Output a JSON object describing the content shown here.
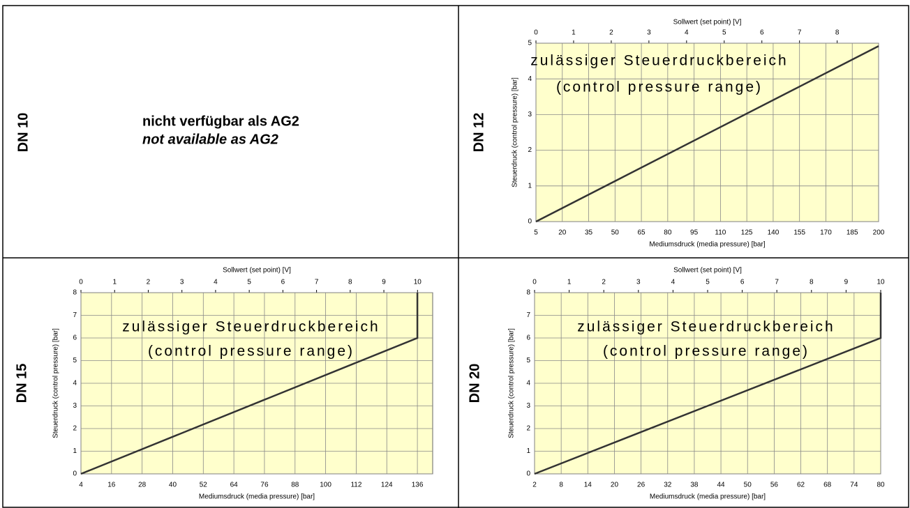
{
  "cells": [
    {
      "label": "DN 10",
      "lines": [
        "nicht verfügbar als AG2",
        "not available as AG2"
      ]
    }
  ],
  "chart_data": [
    {
      "type": "line",
      "panel_label": "DN 12",
      "title": "Sollwert (set point) [V]",
      "xlabel": "Mediumsdruck (media pressure) [bar]",
      "ylabel": "Steuerdruck (control pressure) [bar]",
      "annotations": [
        "zulässiger Steuerdruckbereich",
        "(control pressure range)"
      ],
      "x": [
        5,
        200
      ],
      "values": [
        0,
        4.92
      ],
      "color": "#333333",
      "xlim": [
        5,
        200
      ],
      "xticks": [
        5,
        20,
        35,
        50,
        65,
        80,
        95,
        110,
        125,
        140,
        155,
        170,
        185,
        200
      ],
      "x2lim": [
        0,
        9.1
      ],
      "x2ticks": [
        0,
        1,
        2,
        3,
        4,
        5,
        6,
        7,
        8
      ],
      "ylim": [
        0,
        5
      ],
      "yticks": [
        0,
        1,
        2,
        3,
        4,
        5
      ],
      "grid": true,
      "background": "#ffffcc"
    },
    {
      "type": "line",
      "panel_label": "DN 15",
      "title": "Sollwert (set point) [V]",
      "xlabel": "Mediumsdruck (media pressure) [bar]",
      "ylabel": "Steuerdruck (control pressure) [bar]",
      "annotations": [
        "zulässiger Steuerdruckbereich",
        "(control pressure range)"
      ],
      "x": [
        4,
        136,
        136
      ],
      "values": [
        0,
        6,
        8
      ],
      "color": "#333333",
      "xlim": [
        4,
        142
      ],
      "xticks": [
        4,
        16,
        28,
        40,
        52,
        64,
        76,
        88,
        100,
        112,
        124,
        136
      ],
      "x2lim": [
        0,
        10.45
      ],
      "x2ticks": [
        0,
        1,
        2,
        3,
        4,
        5,
        6,
        7,
        8,
        9,
        10
      ],
      "ylim": [
        0,
        8
      ],
      "yticks": [
        0,
        1,
        2,
        3,
        4,
        5,
        6,
        7,
        8
      ],
      "grid": true,
      "background": "#ffffcc"
    },
    {
      "type": "line",
      "panel_label": "DN 20",
      "title": "Sollwert (set point) [V]",
      "xlabel": "Mediumsdruck (media pressure) [bar]",
      "ylabel": "Steuerdruck (control pressure) [bar]",
      "annotations": [
        "zulässiger Steuerdruckbereich",
        "(control pressure range)"
      ],
      "x": [
        2,
        80,
        80
      ],
      "values": [
        0,
        6,
        8
      ],
      "color": "#333333",
      "xlim": [
        2,
        80
      ],
      "xticks": [
        2,
        8,
        14,
        20,
        26,
        32,
        38,
        44,
        50,
        56,
        62,
        68,
        74,
        80
      ],
      "x2lim": [
        0,
        10
      ],
      "x2ticks": [
        0,
        1,
        2,
        3,
        4,
        5,
        6,
        7,
        8,
        9,
        10
      ],
      "ylim": [
        0,
        8
      ],
      "yticks": [
        0,
        1,
        2,
        3,
        4,
        5,
        6,
        7,
        8
      ],
      "grid": true,
      "background": "#ffffcc"
    }
  ]
}
